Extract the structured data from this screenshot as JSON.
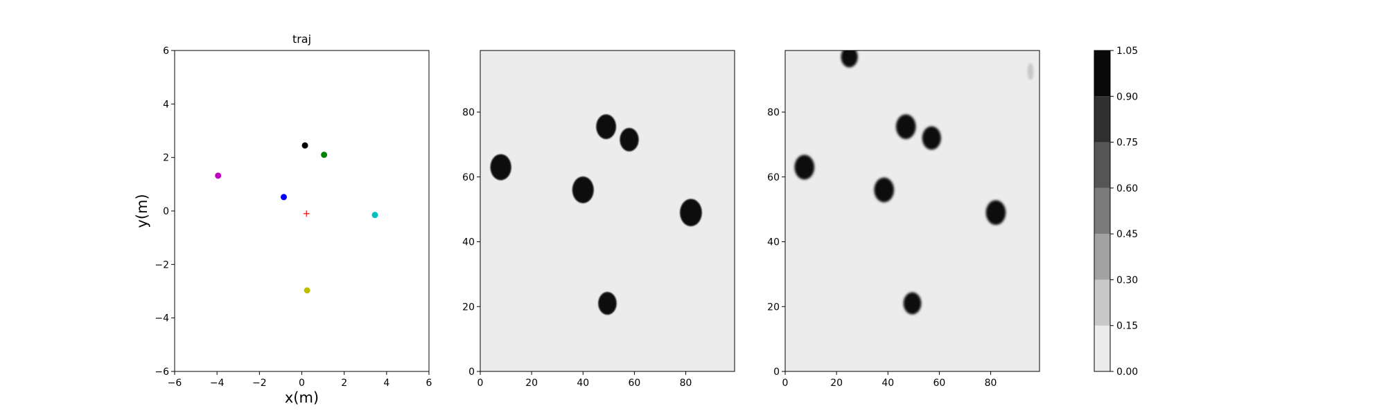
{
  "chart_data": [
    {
      "type": "scatter",
      "title": "traj",
      "xlabel": "x(m)",
      "ylabel": "y(m)",
      "xlim": [
        -6,
        6
      ],
      "ylim": [
        -6,
        6
      ],
      "xticks": [
        -6,
        -4,
        -2,
        0,
        2,
        4,
        6
      ],
      "yticks": [
        -6,
        -4,
        -2,
        0,
        2,
        4,
        6
      ],
      "grid": false,
      "points": [
        {
          "x": 0.15,
          "y": 2.45,
          "color": "#000000",
          "marker": "dot"
        },
        {
          "x": 1.05,
          "y": 2.1,
          "color": "#008000",
          "marker": "dot"
        },
        {
          "x": -3.95,
          "y": 1.32,
          "color": "#bf00bf",
          "marker": "dot"
        },
        {
          "x": -0.85,
          "y": 0.52,
          "color": "#0000ff",
          "marker": "dot"
        },
        {
          "x": 3.45,
          "y": -0.15,
          "color": "#00bfbf",
          "marker": "dot"
        },
        {
          "x": 0.25,
          "y": -2.97,
          "color": "#bfbf00",
          "marker": "dot"
        },
        {
          "x": 0.22,
          "y": -0.1,
          "color": "#ff0000",
          "marker": "plus"
        }
      ]
    },
    {
      "type": "heatmap",
      "xlim": [
        0,
        99
      ],
      "ylim": [
        0,
        99
      ],
      "xticks": [
        0,
        20,
        40,
        60,
        80
      ],
      "yticks": [
        0,
        20,
        40,
        60,
        80
      ],
      "background_level": 0.1,
      "blobs": [
        {
          "x": 8,
          "y": 63,
          "r": 3.8
        },
        {
          "x": 49,
          "y": 75.5,
          "r": 3.6
        },
        {
          "x": 58,
          "y": 71.5,
          "r": 3.4
        },
        {
          "x": 40,
          "y": 56,
          "r": 3.9
        },
        {
          "x": 82,
          "y": 49,
          "r": 4.0
        },
        {
          "x": 49.5,
          "y": 21,
          "r": 3.3
        }
      ]
    },
    {
      "type": "heatmap",
      "xlim": [
        0,
        99
      ],
      "ylim": [
        0,
        99
      ],
      "xticks": [
        0,
        20,
        40,
        60,
        80
      ],
      "yticks": [
        0,
        20,
        40,
        60,
        80
      ],
      "background_level": 0.1,
      "blobs": [
        {
          "x": 25,
          "y": 97,
          "r": 3.0
        },
        {
          "x": 7.5,
          "y": 63,
          "r": 3.6
        },
        {
          "x": 47,
          "y": 75.5,
          "r": 3.6
        },
        {
          "x": 57,
          "y": 72,
          "r": 3.4
        },
        {
          "x": 38.5,
          "y": 56,
          "r": 3.6
        },
        {
          "x": 82,
          "y": 49,
          "r": 3.6
        },
        {
          "x": 49.5,
          "y": 21,
          "r": 3.2
        }
      ],
      "faint_blobs": [
        {
          "x": 95.5,
          "y": 92.5,
          "rx": 1.2,
          "ry": 2.6
        }
      ]
    }
  ],
  "colorbar": {
    "levels": [
      0.0,
      0.15,
      0.3,
      0.45,
      0.6,
      0.75,
      0.9,
      1.05
    ],
    "tick_labels": [
      "0.00",
      "0.15",
      "0.30",
      "0.45",
      "0.60",
      "0.75",
      "0.90",
      "1.05"
    ],
    "colors": [
      "#ececec",
      "#c8c8c8",
      "#a2a2a2",
      "#7b7b7b",
      "#555555",
      "#303030",
      "#090909"
    ]
  }
}
